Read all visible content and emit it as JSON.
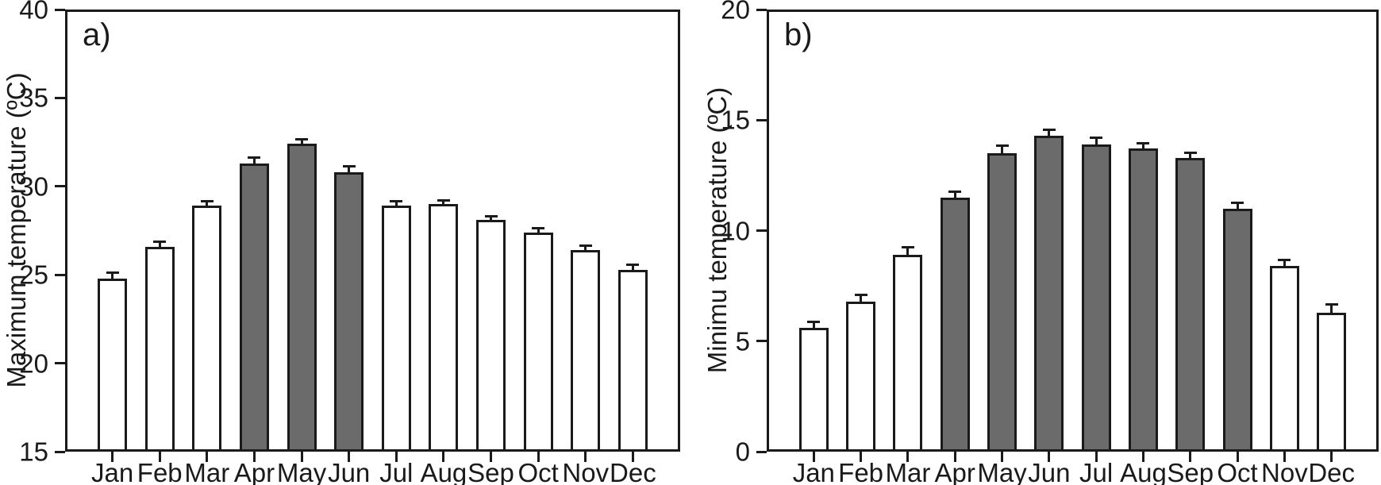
{
  "figure": {
    "background": "#ffffff",
    "colors": {
      "bar_dark": "#6b6b6b",
      "bar_light": "#ffffff",
      "stroke": "#1a1a1a",
      "text": "#1a1a1a"
    }
  },
  "chart_data": [
    {
      "type": "bar",
      "panel_label": "a)",
      "title": "",
      "xlabel": "",
      "ylabel": "Maximum temperature (ºC)",
      "ylim": [
        15,
        40
      ],
      "yticks": [
        40,
        35,
        30,
        25,
        20,
        15
      ],
      "grid": false,
      "legend": null,
      "error_bars": "upper",
      "categories": [
        "Jan",
        "Feb",
        "Mar",
        "Apr",
        "May",
        "Jun",
        "Jul",
        "Aug",
        "Sep",
        "Oct",
        "Nov",
        "Dec"
      ],
      "values": [
        24.8,
        26.6,
        28.9,
        31.3,
        32.4,
        30.8,
        28.9,
        29.0,
        28.1,
        27.4,
        26.4,
        25.3
      ],
      "errors": [
        0.25,
        0.2,
        0.2,
        0.25,
        0.2,
        0.25,
        0.2,
        0.15,
        0.15,
        0.15,
        0.2,
        0.2
      ],
      "bar_fill": [
        "light",
        "light",
        "light",
        "dark",
        "dark",
        "dark",
        "light",
        "light",
        "light",
        "light",
        "light",
        "light"
      ]
    },
    {
      "type": "bar",
      "panel_label": "b)",
      "title": "",
      "xlabel": "",
      "ylabel": "Minimu temperature (ºC)",
      "ylim": [
        0,
        20
      ],
      "yticks": [
        20,
        15,
        10,
        5,
        0
      ],
      "grid": false,
      "legend": null,
      "error_bars": "upper",
      "categories": [
        "Jan",
        "Feb",
        "Mar",
        "Apr",
        "May",
        "Jun",
        "Jul",
        "Aug",
        "Sep",
        "Oct",
        "Nov",
        "Dec"
      ],
      "values": [
        5.6,
        6.8,
        8.9,
        11.5,
        13.5,
        14.3,
        13.9,
        13.7,
        13.3,
        11.0,
        8.4,
        6.3
      ],
      "errors": [
        0.2,
        0.25,
        0.3,
        0.2,
        0.3,
        0.2,
        0.25,
        0.2,
        0.15,
        0.2,
        0.2,
        0.3
      ],
      "bar_fill": [
        "light",
        "light",
        "light",
        "dark",
        "dark",
        "dark",
        "dark",
        "dark",
        "dark",
        "dark",
        "light",
        "light"
      ]
    }
  ]
}
